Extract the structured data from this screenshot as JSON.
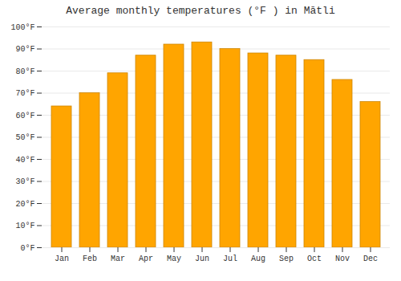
{
  "chart_data": {
    "type": "bar",
    "title": "Average monthly temperatures (°F ) in Mātli",
    "categories": [
      "Jan",
      "Feb",
      "Mar",
      "Apr",
      "May",
      "Jun",
      "Jul",
      "Aug",
      "Sep",
      "Oct",
      "Nov",
      "Dec"
    ],
    "values": [
      64,
      70,
      79,
      87,
      92,
      93,
      90,
      88,
      87,
      85,
      76,
      66
    ],
    "color": "#FFA500",
    "ylim": [
      0,
      100
    ],
    "yticks": [
      {
        "value": 0,
        "label": "0°F"
      },
      {
        "value": 10,
        "label": "10°F"
      },
      {
        "value": 20,
        "label": "20°F"
      },
      {
        "value": 30,
        "label": "30°F"
      },
      {
        "value": 40,
        "label": "40°F"
      },
      {
        "value": 50,
        "label": "50°F"
      },
      {
        "value": 60,
        "label": "60°F"
      },
      {
        "value": 70,
        "label": "70°F"
      },
      {
        "value": 80,
        "label": "80°F"
      },
      {
        "value": 90,
        "label": "90°F"
      },
      {
        "value": 100,
        "label": "100°F"
      }
    ],
    "grid": true
  }
}
